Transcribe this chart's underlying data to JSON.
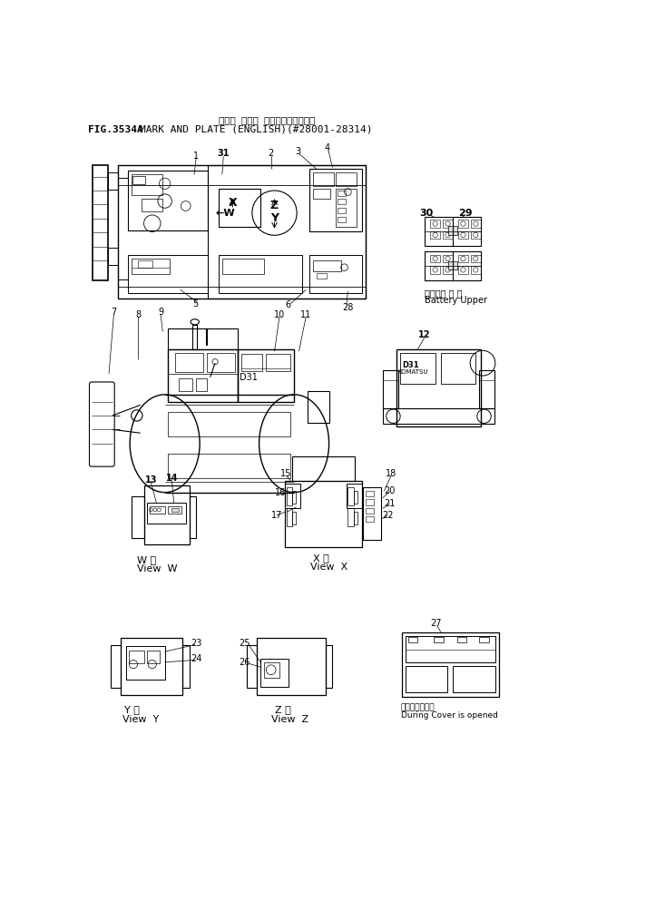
{
  "title_jp": "マーク オヨビ プレート（エイゴ）",
  "title_en": "MARK AND PLATE (ENGLISH)(#28001-28314)",
  "fig_label": "FIG.3534A",
  "bg_color": "#ffffff",
  "line_color": "#000000",
  "fig_width": 7.12,
  "fig_height": 9.93,
  "dpi": 100
}
